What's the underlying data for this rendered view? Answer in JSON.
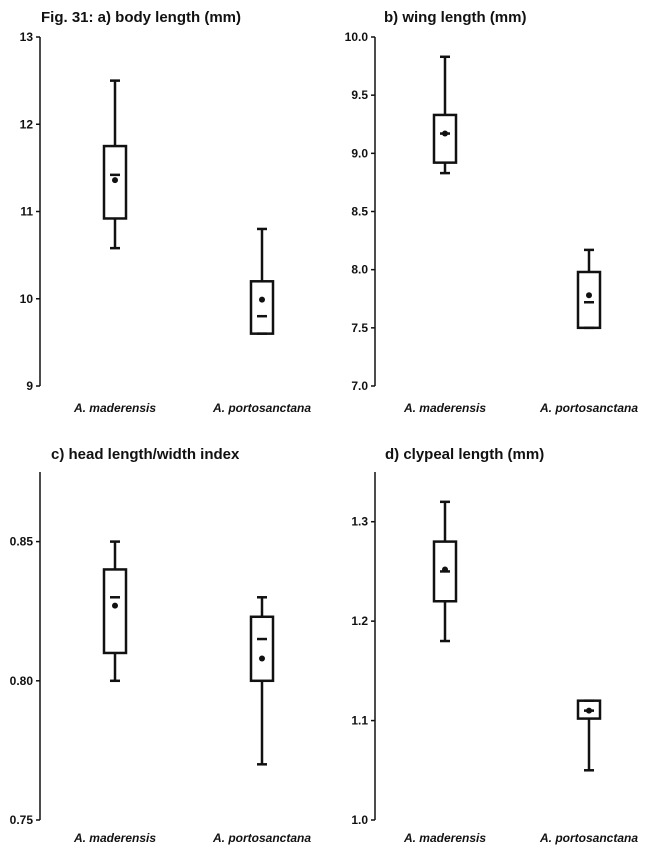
{
  "chart_data": [
    {
      "id": "a",
      "type": "box",
      "title": "Fig. 31: a) body length (mm)",
      "ylim": [
        9,
        13
      ],
      "yticks": [
        9,
        10,
        11,
        12,
        13
      ],
      "ytick_labels": [
        "9",
        "10",
        "11",
        "12",
        "13"
      ],
      "categories": [
        "A. maderensis",
        "A. portosanctana"
      ],
      "boxes": [
        {
          "min": 10.58,
          "q1": 10.92,
          "median": 11.42,
          "q3": 11.75,
          "max": 12.5,
          "mean": 11.36
        },
        {
          "min": 9.6,
          "q1": 9.6,
          "median": 9.8,
          "q3": 10.2,
          "max": 10.8,
          "mean": 9.99
        }
      ]
    },
    {
      "id": "b",
      "type": "box",
      "title": "b) wing length (mm)",
      "ylim": [
        7.0,
        10.0
      ],
      "yticks": [
        7.0,
        7.5,
        8.0,
        8.5,
        9.0,
        9.5,
        10.0
      ],
      "ytick_labels": [
        "7.0",
        "7.5",
        "8.0",
        "8.5",
        "9.0",
        "9.5",
        "10.0"
      ],
      "categories": [
        "A. maderensis",
        "A. portosanctana"
      ],
      "boxes": [
        {
          "min": 8.83,
          "q1": 8.92,
          "median": 9.17,
          "q3": 9.33,
          "max": 9.83,
          "mean": 9.17
        },
        {
          "min": 7.5,
          "q1": 7.5,
          "median": 7.72,
          "q3": 7.98,
          "max": 8.17,
          "mean": 7.78
        }
      ]
    },
    {
      "id": "c",
      "type": "box",
      "title": "c) head length/width index",
      "ylim": [
        0.75,
        0.875
      ],
      "yticks": [
        0.75,
        0.8,
        0.85
      ],
      "ytick_labels": [
        "0.75",
        "0.80",
        "0.85"
      ],
      "categories": [
        "A. maderensis",
        "A. portosanctana"
      ],
      "boxes": [
        {
          "min": 0.8,
          "q1": 0.81,
          "median": 0.83,
          "q3": 0.84,
          "max": 0.85,
          "mean": 0.827
        },
        {
          "min": 0.77,
          "q1": 0.8,
          "median": 0.815,
          "q3": 0.823,
          "max": 0.83,
          "mean": 0.808
        }
      ]
    },
    {
      "id": "d",
      "type": "box",
      "title": "d) clypeal length (mm)",
      "ylim": [
        1.0,
        1.35
      ],
      "yticks": [
        1.0,
        1.1,
        1.2,
        1.3
      ],
      "ytick_labels": [
        "1.0",
        "1.1",
        "1.2",
        "1.3"
      ],
      "categories": [
        "A. maderensis",
        "A. portosanctana"
      ],
      "boxes": [
        {
          "min": 1.18,
          "q1": 1.22,
          "median": 1.25,
          "q3": 1.28,
          "max": 1.32,
          "mean": 1.252
        },
        {
          "min": 1.05,
          "q1": 1.102,
          "median": 1.11,
          "q3": 1.12,
          "max": 1.12,
          "mean": 1.11
        }
      ]
    }
  ]
}
